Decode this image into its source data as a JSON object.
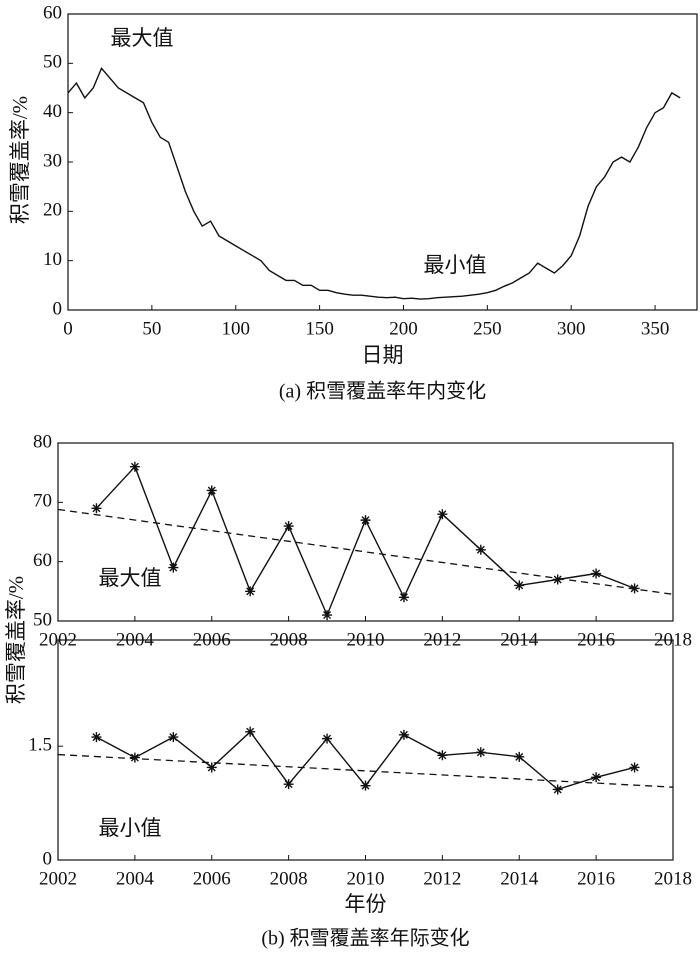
{
  "chart_data": [
    {
      "type": "line",
      "xlabel": "日期",
      "ylabel": "积雪覆盖率/%",
      "caption": "(a) 积雪覆盖率年内变化",
      "annotations": [
        "最大值",
        "最小值"
      ],
      "x": [
        0,
        5,
        10,
        15,
        20,
        25,
        30,
        35,
        40,
        45,
        50,
        55,
        60,
        65,
        70,
        75,
        80,
        85,
        90,
        95,
        100,
        105,
        110,
        115,
        120,
        125,
        130,
        135,
        140,
        145,
        150,
        155,
        160,
        165,
        170,
        175,
        180,
        185,
        190,
        195,
        200,
        205,
        210,
        215,
        220,
        225,
        230,
        235,
        240,
        245,
        250,
        255,
        260,
        265,
        270,
        275,
        280,
        285,
        290,
        295,
        300,
        305,
        310,
        315,
        320,
        325,
        330,
        335,
        340,
        345,
        350,
        355,
        360,
        365
      ],
      "series": [
        {
          "color": "#111",
          "values": [
            44,
            46,
            43,
            45,
            49,
            47,
            45,
            44,
            43,
            42,
            38,
            35,
            34,
            29,
            24,
            20,
            17,
            18,
            15,
            14,
            13,
            12,
            11,
            10,
            8,
            7,
            6,
            6,
            5,
            5,
            4,
            4,
            3.5,
            3.2,
            3,
            3,
            2.8,
            2.6,
            2.5,
            2.6,
            2.3,
            2.4,
            2.2,
            2.3,
            2.5,
            2.6,
            2.7,
            2.8,
            3,
            3.2,
            3.5,
            4,
            4.8,
            5.5,
            6.5,
            7.5,
            9.5,
            8.5,
            7.5,
            9,
            11,
            15,
            21,
            25,
            27,
            30,
            31,
            30,
            33,
            37,
            40,
            41,
            44,
            43
          ]
        }
      ],
      "xlim": [
        0,
        375
      ],
      "xticks": [
        0,
        50,
        100,
        150,
        200,
        250,
        300,
        350
      ],
      "ylim": [
        0,
        60
      ],
      "yticks": [
        0,
        10,
        20,
        30,
        40,
        50,
        60
      ]
    },
    {
      "type": "line",
      "ylabel": "积雪覆盖率/%",
      "annotations": [
        "最大值"
      ],
      "x": [
        2003,
        2004,
        2005,
        2006,
        2007,
        2008,
        2009,
        2010,
        2011,
        2012,
        2013,
        2014,
        2015,
        2016,
        2017
      ],
      "series": [
        {
          "color": "#111",
          "marker": "asterisk",
          "values": [
            69,
            76,
            59,
            72,
            55,
            66,
            51,
            67,
            54,
            68,
            62,
            56,
            57,
            58,
            55.5
          ]
        }
      ],
      "trend": {
        "x": [
          2002,
          2018
        ],
        "values": [
          68.8,
          54.5
        ],
        "style": "dashed"
      },
      "xlim": [
        2002,
        2018
      ],
      "xticks": [
        2002,
        2004,
        2006,
        2008,
        2010,
        2012,
        2014,
        2016,
        2018
      ],
      "ylim": [
        50,
        80
      ],
      "yticks": [
        50,
        60,
        70,
        80
      ]
    },
    {
      "type": "line",
      "xlabel": "年份",
      "caption": "(b) 积雪覆盖率年际变化",
      "annotations": [
        "最小值"
      ],
      "x": [
        2003,
        2004,
        2005,
        2006,
        2007,
        2008,
        2009,
        2010,
        2011,
        2012,
        2013,
        2014,
        2015,
        2016,
        2017
      ],
      "series": [
        {
          "color": "#111",
          "marker": "asterisk",
          "values": [
            1.62,
            1.35,
            1.62,
            1.22,
            1.69,
            1.0,
            1.6,
            0.98,
            1.65,
            1.38,
            1.42,
            1.36,
            0.93,
            1.09,
            1.22
          ]
        }
      ],
      "trend": {
        "x": [
          2002,
          2018
        ],
        "values": [
          1.39,
          0.96
        ],
        "style": "dashed"
      },
      "xlim": [
        2002,
        2018
      ],
      "xticks": [
        2002,
        2004,
        2006,
        2008,
        2010,
        2012,
        2014,
        2016,
        2018
      ],
      "ylim": [
        0,
        2.9
      ],
      "yticks": [
        0,
        1.5
      ]
    }
  ]
}
